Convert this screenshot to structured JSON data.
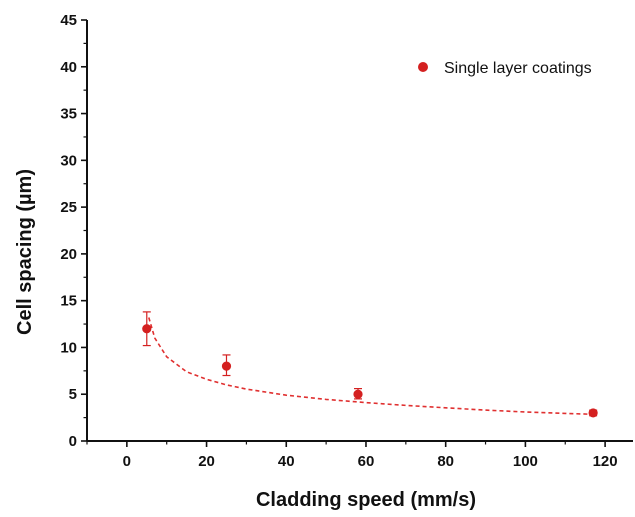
{
  "chart_data": {
    "type": "scatter",
    "title": "",
    "xlabel": "Cladding speed (mm/s)",
    "ylabel": "Cell spacing (µm)",
    "xlim": [
      -10,
      127
    ],
    "ylim": [
      0,
      45
    ],
    "x_ticks": [
      0,
      20,
      40,
      60,
      80,
      100,
      120
    ],
    "y_ticks": [
      0,
      5,
      10,
      15,
      20,
      25,
      30,
      35,
      40,
      45
    ],
    "x_tick_labels": [
      "0",
      "20",
      "40",
      "60",
      "80",
      "100",
      "120"
    ],
    "y_tick_labels": [
      "0",
      "5",
      "10",
      "15",
      "20",
      "25",
      "30",
      "35",
      "40",
      "45"
    ],
    "grid": false,
    "legend_position": "top-right",
    "series": [
      {
        "name": "Single layer coatings",
        "color": "#d42020",
        "marker": "circle",
        "points": [
          {
            "x": 5,
            "y": 12.0,
            "err_low": 1.8,
            "err_high": 1.8
          },
          {
            "x": 25,
            "y": 8.0,
            "err_low": 1.0,
            "err_high": 1.2
          },
          {
            "x": 58,
            "y": 5.0,
            "err_low": 0.5,
            "err_high": 0.6
          },
          {
            "x": 117,
            "y": 3.0,
            "err_low": 0.3,
            "err_high": 0.3
          }
        ]
      }
    ],
    "fit_curve": {
      "style": "dashed",
      "color": "#e03030",
      "points": [
        {
          "x": 5.5,
          "y": 13.2
        },
        {
          "x": 7,
          "y": 11.0
        },
        {
          "x": 10,
          "y": 9.0
        },
        {
          "x": 15,
          "y": 7.4
        },
        {
          "x": 20,
          "y": 6.6
        },
        {
          "x": 25,
          "y": 6.0
        },
        {
          "x": 30,
          "y": 5.55
        },
        {
          "x": 40,
          "y": 4.9
        },
        {
          "x": 50,
          "y": 4.45
        },
        {
          "x": 60,
          "y": 4.1
        },
        {
          "x": 70,
          "y": 3.8
        },
        {
          "x": 80,
          "y": 3.55
        },
        {
          "x": 90,
          "y": 3.3
        },
        {
          "x": 100,
          "y": 3.1
        },
        {
          "x": 110,
          "y": 2.95
        },
        {
          "x": 117,
          "y": 2.85
        }
      ]
    }
  }
}
